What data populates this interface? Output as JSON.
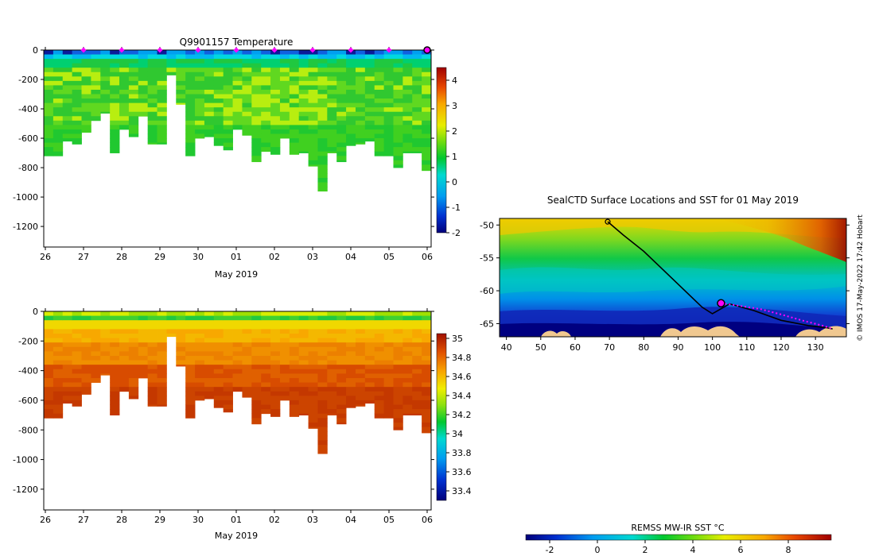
{
  "chart_data": [
    {
      "id": "temperature",
      "type": "heatmap",
      "title": "Q9901157  Temperature",
      "xlabel": "May 2019",
      "x_ticks": [
        "26",
        "27",
        "28",
        "29",
        "30",
        "01",
        "02",
        "03",
        "04",
        "05",
        "06"
      ],
      "y_ticks": [
        0,
        -200,
        -400,
        -600,
        -800,
        -1000,
        -1200
      ],
      "ylim": [
        -1340,
        0
      ],
      "profile_depths_m": [
        720,
        720,
        620,
        640,
        560,
        480,
        430,
        700,
        540,
        590,
        450,
        640,
        640,
        170,
        370,
        720,
        600,
        590,
        650,
        680,
        540,
        580,
        760,
        690,
        710,
        600,
        710,
        700,
        790,
        960,
        700,
        760,
        650,
        640,
        620,
        720,
        720,
        800,
        700,
        700,
        820
      ],
      "surface_marker_days": [
        "27",
        "28",
        "29",
        "30",
        "01",
        "02",
        "03",
        "04",
        "05"
      ],
      "colorbar": {
        "ticks": [
          "4",
          "3",
          "2",
          "1",
          "0",
          "-1",
          "-2"
        ],
        "range": [
          -2,
          4.5
        ]
      }
    },
    {
      "id": "salinity",
      "type": "heatmap",
      "title": "",
      "xlabel": "May 2019",
      "x_ticks": [
        "26",
        "27",
        "28",
        "29",
        "30",
        "01",
        "02",
        "03",
        "04",
        "05",
        "06"
      ],
      "y_ticks": [
        0,
        -200,
        -400,
        -600,
        -800,
        -1000,
        -1200
      ],
      "ylim": [
        -1340,
        0
      ],
      "colorbar": {
        "ticks": [
          "35",
          "34.8",
          "34.6",
          "34.4",
          "34.2",
          "34",
          "33.8",
          "33.6",
          "33.4"
        ],
        "range": [
          33.3,
          35.05
        ]
      }
    },
    {
      "id": "sst_map",
      "type": "heatmap",
      "title": "SealCTD Surface Locations and SST for 01 May 2019",
      "x_ticks": [
        "40",
        "50",
        "60",
        "70",
        "80",
        "90",
        "100",
        "110",
        "120",
        "130"
      ],
      "xlim": [
        38,
        139
      ],
      "y_ticks": [
        "-50",
        "-55",
        "-60",
        "-65"
      ],
      "ylim": [
        -67,
        -49
      ],
      "track_points_lonlat": [
        [
          69.5,
          -49.5
        ],
        [
          74,
          -51.5
        ],
        [
          80,
          -54
        ],
        [
          86,
          -57
        ],
        [
          92,
          -60
        ],
        [
          97,
          -62.5
        ],
        [
          100,
          -63.5
        ],
        [
          105,
          -62
        ],
        [
          112,
          -63
        ],
        [
          120,
          -64.5
        ],
        [
          128,
          -65.3
        ],
        [
          133,
          -65.6
        ],
        [
          135,
          -65.8
        ]
      ],
      "current_location_lonlat": [
        102.5,
        -61.9
      ],
      "recent_track_lonlat": [
        [
          102.5,
          -61.9
        ],
        [
          108,
          -62.3
        ],
        [
          114,
          -62.8
        ],
        [
          120,
          -63.6
        ],
        [
          126,
          -64.5
        ],
        [
          132,
          -65.3
        ],
        [
          135,
          -65.8
        ]
      ],
      "colorbar": {
        "label": "REMSS MW-IR SST °C",
        "ticks": [
          "-2",
          "0",
          "2",
          "4",
          "6",
          "8"
        ],
        "range": [
          -3,
          9.8
        ]
      },
      "credit": "© IMOS 17-May-2022 17:42 Hobart"
    }
  ]
}
